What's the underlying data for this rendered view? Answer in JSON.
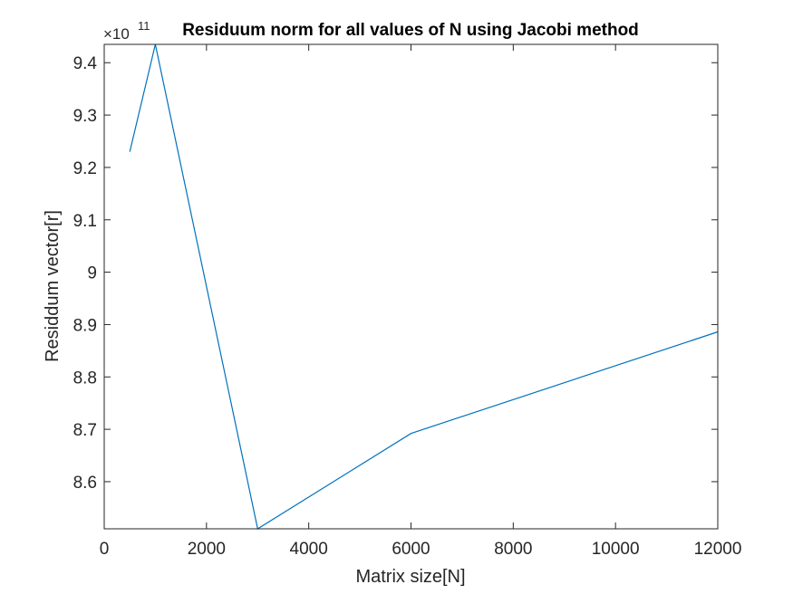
{
  "chart_data": {
    "type": "line",
    "title": "Residuum norm for all values of N using Jacobi method",
    "xlabel": "Matrix size[N]",
    "ylabel": "Residdum vector[r]",
    "y_exponent_prefix": "×10",
    "y_exponent_power": "11",
    "xlim": [
      0,
      12000
    ],
    "ylim": [
      8.51,
      9.435
    ],
    "x_ticks": [
      0,
      2000,
      4000,
      6000,
      8000,
      10000,
      12000
    ],
    "x_tick_labels": [
      "0",
      "2000",
      "4000",
      "6000",
      "8000",
      "10000",
      "12000"
    ],
    "y_ticks": [
      8.6,
      8.7,
      8.8,
      8.9,
      9.0,
      9.1,
      9.2,
      9.3,
      9.4
    ],
    "y_tick_labels": [
      "8.6",
      "8.7",
      "8.8",
      "8.9",
      "9",
      "9.1",
      "9.2",
      "9.3",
      "9.4"
    ],
    "grid": false,
    "series": [
      {
        "color": "#0072BD",
        "x": [
          500,
          1000,
          3000,
          6000,
          12000
        ],
        "y": [
          9.23,
          9.435,
          8.51,
          8.692,
          8.886
        ]
      }
    ]
  }
}
